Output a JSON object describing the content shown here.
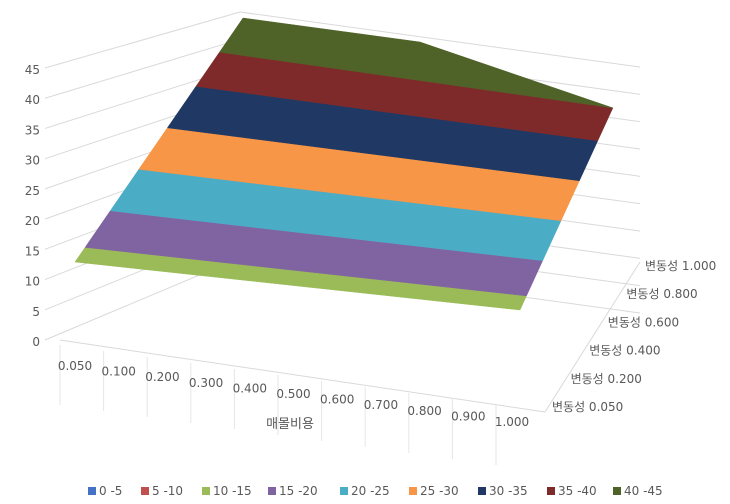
{
  "chart_data": {
    "type": "surface-3d",
    "title": "",
    "xlabel": "매몰비용",
    "ylabel": "",
    "zlabel": "",
    "x_ticks": [
      "0.050",
      "0.100",
      "0.200",
      "0.300",
      "0.400",
      "0.500",
      "0.600",
      "0.700",
      "0.800",
      "0.900",
      "1.000"
    ],
    "depth_ticks": [
      "변동성 0.050",
      "변동성 0.200",
      "변동성 0.400",
      "변동성 0.600",
      "변동성 0.800",
      "변동성 1.000"
    ],
    "z_ticks": [
      "0",
      "5",
      "10",
      "15",
      "20",
      "25",
      "30",
      "35",
      "40",
      "45"
    ],
    "zlim": [
      0,
      45
    ],
    "grid": true,
    "legend_position": "bottom",
    "bands": [
      {
        "name": "0 -5",
        "color": "#4472C4"
      },
      {
        "name": "5 -10",
        "color": "#C0504D"
      },
      {
        "name": "10 -15",
        "color": "#9BBB59"
      },
      {
        "name": "15 -20",
        "color": "#8064A2"
      },
      {
        "name": "20 -25",
        "color": "#4BACC6"
      },
      {
        "name": "25 -30",
        "color": "#F79646"
      },
      {
        "name": "30 -35",
        "color": "#1F3864"
      },
      {
        "name": "35 -40",
        "color": "#7F2A2A"
      },
      {
        "name": "40 -45",
        "color": "#4F6228"
      }
    ]
  }
}
